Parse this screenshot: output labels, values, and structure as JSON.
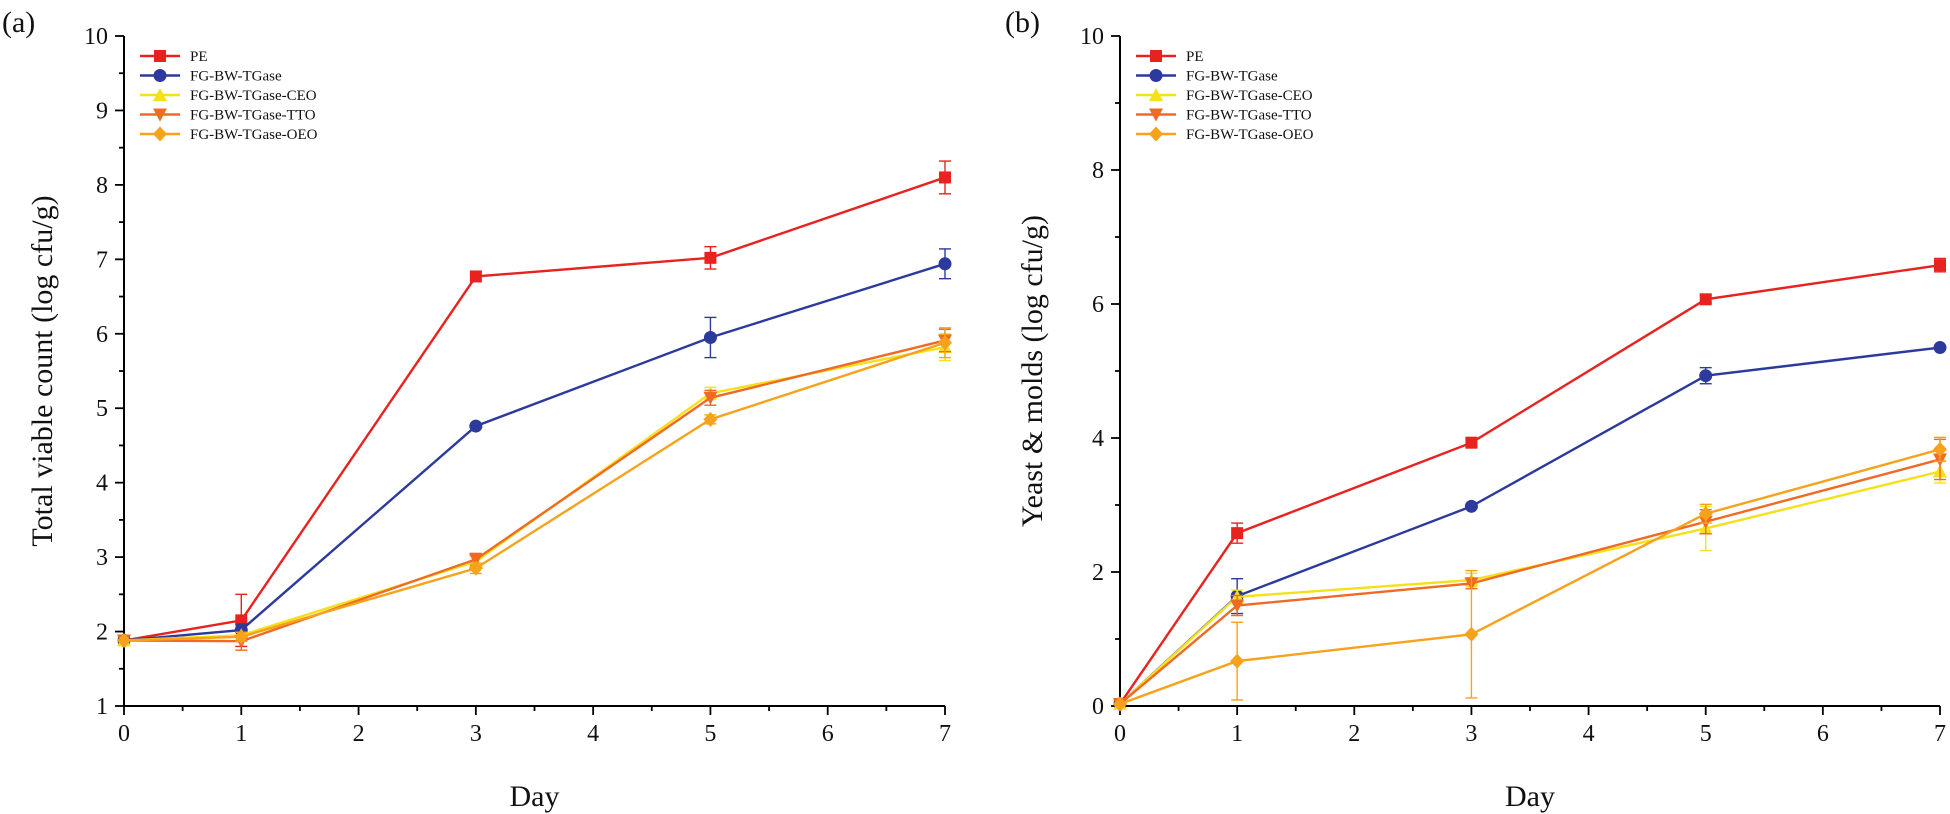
{
  "chart_data": [
    {
      "type": "line",
      "panel_label": "(a)",
      "xlabel": "Day",
      "ylabel": "Total viable count (log cfu/g)",
      "xlim": [
        0,
        7
      ],
      "ylim": [
        1,
        10
      ],
      "xticks": [
        0,
        1,
        2,
        3,
        4,
        5,
        6,
        7
      ],
      "yticks": [
        1,
        2,
        3,
        4,
        5,
        6,
        7,
        8,
        9,
        10
      ],
      "legend_position": "top-left",
      "x": [
        0,
        1,
        3,
        5,
        7
      ],
      "series": [
        {
          "name": "PE",
          "color": "#e8231f",
          "marker": "square",
          "values": [
            1.88,
            2.15,
            6.77,
            7.02,
            8.1
          ],
          "errors": [
            0.04,
            0.35,
            0.04,
            0.15,
            0.22
          ]
        },
        {
          "name": "FG-BW-TGase",
          "color": "#2b3a9c",
          "marker": "circle",
          "values": [
            1.88,
            2.02,
            4.76,
            5.95,
            6.94
          ],
          "errors": [
            0.04,
            0.08,
            0.04,
            0.27,
            0.2
          ]
        },
        {
          "name": "FG-BW-TGase-CEO",
          "color": "#f5e11b",
          "marker": "triangle-up",
          "values": [
            1.88,
            1.95,
            2.94,
            5.2,
            5.82
          ],
          "errors": [
            0.04,
            0.05,
            0.08,
            0.08,
            0.18
          ]
        },
        {
          "name": "FG-BW-TGase-TTO",
          "color": "#f06a23",
          "marker": "triangle-down",
          "values": [
            1.88,
            1.87,
            2.97,
            5.14,
            5.91
          ],
          "errors": [
            0.04,
            0.12,
            0.08,
            0.1,
            0.15
          ]
        },
        {
          "name": "FG-BW-TGase-OEO",
          "color": "#f7a21c",
          "marker": "diamond",
          "values": [
            1.88,
            1.93,
            2.85,
            4.85,
            5.88
          ],
          "errors": [
            0.04,
            0.06,
            0.07,
            0.06,
            0.2
          ]
        }
      ]
    },
    {
      "type": "line",
      "panel_label": "(b)",
      "xlabel": "Day",
      "ylabel": "Yeast & molds (log cfu/g)",
      "xlim": [
        0,
        7
      ],
      "ylim": [
        0,
        10
      ],
      "xticks": [
        0,
        1,
        2,
        3,
        4,
        5,
        6,
        7
      ],
      "yticks": [
        0,
        2,
        4,
        6,
        8,
        10
      ],
      "legend_position": "top-left",
      "x": [
        0,
        1,
        3,
        5,
        7
      ],
      "series": [
        {
          "name": "PE",
          "color": "#e8231f",
          "marker": "square",
          "values": [
            0.03,
            2.58,
            3.93,
            6.07,
            6.58
          ],
          "errors": [
            0.02,
            0.15,
            0.06,
            0.06,
            0.1
          ]
        },
        {
          "name": "FG-BW-TGase",
          "color": "#2b3a9c",
          "marker": "circle",
          "values": [
            0.03,
            1.64,
            2.98,
            4.93,
            5.35
          ],
          "errors": [
            0.02,
            0.26,
            0.04,
            0.12,
            0.04
          ]
        },
        {
          "name": "FG-BW-TGase-CEO",
          "color": "#f5e11b",
          "marker": "triangle-up",
          "values": [
            0.03,
            1.63,
            1.88,
            2.65,
            3.5
          ],
          "errors": [
            0.02,
            0.1,
            0.1,
            0.33,
            0.17
          ]
        },
        {
          "name": "FG-BW-TGase-TTO",
          "color": "#f06a23",
          "marker": "triangle-down",
          "values": [
            0.03,
            1.5,
            1.83,
            2.75,
            3.68
          ],
          "errors": [
            0.02,
            0.15,
            0.08,
            0.18,
            0.3
          ]
        },
        {
          "name": "FG-BW-TGase-OEO",
          "color": "#f7a21c",
          "marker": "diamond",
          "values": [
            0.03,
            0.67,
            1.07,
            2.87,
            3.83
          ],
          "errors": [
            0.02,
            0.58,
            0.95,
            0.14,
            0.18
          ]
        }
      ]
    }
  ]
}
